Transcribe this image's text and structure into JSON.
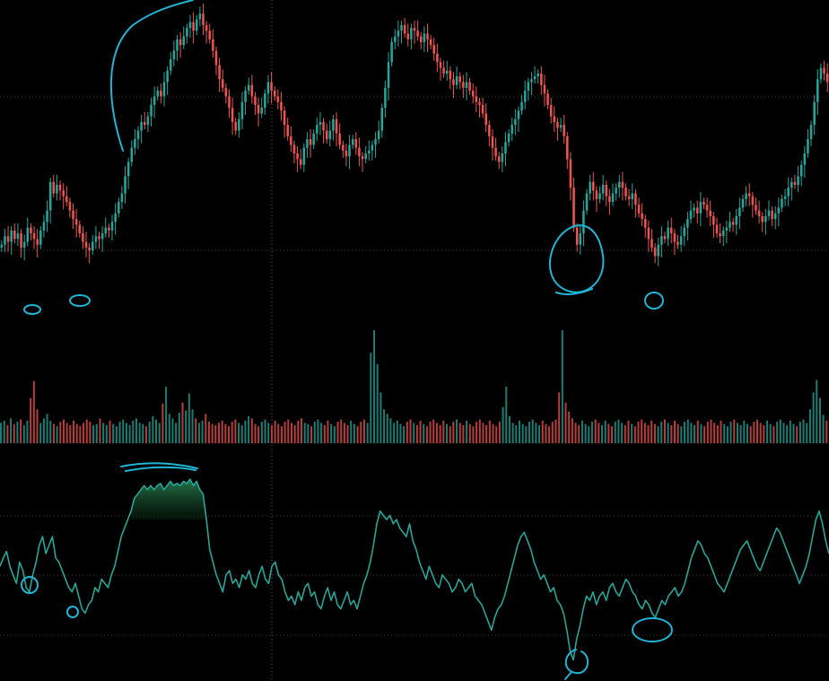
{
  "colors": {
    "background": "#000000",
    "up": "#26a69a",
    "down": "#ef5350",
    "rsi_line": "#26a69a",
    "annotation": "#1fb5d4",
    "grid": "#3a3a3a",
    "crosshair": "#5a5a5a"
  },
  "chart_data": [
    {
      "type": "candlestick",
      "panel": "price",
      "title": "",
      "xlabel": "",
      "ylabel": "",
      "grid": true,
      "ylim": [
        0,
        100
      ],
      "close": [
        18,
        21,
        19,
        23,
        20,
        22,
        17,
        19,
        24,
        22,
        20,
        18,
        23,
        26,
        30,
        40,
        36,
        39,
        37,
        35,
        33,
        30,
        27,
        25,
        22,
        19,
        17,
        16,
        19,
        21,
        20,
        22,
        24,
        23,
        26,
        29,
        33,
        36,
        42,
        47,
        52,
        55,
        58,
        61,
        60,
        63,
        67,
        70,
        72,
        70,
        75,
        79,
        83,
        86,
        90,
        88,
        91,
        94,
        96,
        93,
        97,
        99,
        95,
        93,
        90,
        86,
        81,
        76,
        73,
        70,
        66,
        61,
        58,
        62,
        68,
        72,
        74,
        70,
        67,
        64,
        66,
        71,
        75,
        72,
        70,
        68,
        65,
        60,
        56,
        53,
        50,
        48,
        46,
        52,
        55,
        53,
        57,
        60,
        61,
        58,
        55,
        58,
        62,
        57,
        53,
        51,
        49,
        53,
        55,
        52,
        49,
        48,
        50,
        51,
        53,
        55,
        58,
        66,
        73,
        82,
        89,
        91,
        93,
        95,
        92,
        90,
        94,
        93,
        91,
        89,
        92,
        90,
        88,
        85,
        82,
        80,
        78,
        79,
        76,
        74,
        77,
        75,
        73,
        75,
        72,
        70,
        68,
        67,
        64,
        60,
        56,
        52,
        49,
        47,
        50,
        54,
        57,
        60,
        62,
        65,
        68,
        72,
        75,
        76,
        77,
        78,
        74,
        71,
        67,
        63,
        61,
        59,
        60,
        56,
        48,
        38,
        24,
        18,
        22,
        30,
        36,
        40,
        37,
        34,
        36,
        39,
        35,
        33,
        36,
        38,
        40,
        38,
        35,
        34,
        36,
        32,
        29,
        27,
        24,
        20,
        17,
        14,
        18,
        21,
        20,
        24,
        22,
        19,
        18,
        21,
        24,
        27,
        30,
        31,
        29,
        33,
        32,
        30,
        28,
        25,
        22,
        21,
        23,
        24,
        26,
        25,
        28,
        31,
        34,
        36,
        35,
        32,
        30,
        28,
        26,
        28,
        30,
        27,
        29,
        31,
        34,
        35,
        38,
        40,
        39,
        42,
        46,
        50,
        55,
        60,
        68,
        76,
        80,
        78,
        75
      ]
    },
    {
      "type": "bar",
      "panel": "volume",
      "title": "",
      "values": [
        18,
        20,
        16,
        22,
        17,
        19,
        21,
        16,
        20,
        40,
        55,
        30,
        18,
        22,
        26,
        20,
        17,
        15,
        19,
        21,
        18,
        16,
        20,
        17,
        15,
        18,
        21,
        19,
        16,
        17,
        22,
        18,
        16,
        20,
        17,
        15,
        19,
        21,
        18,
        16,
        20,
        22,
        18,
        17,
        15,
        19,
        24,
        21,
        18,
        35,
        50,
        26,
        22,
        18,
        27,
        36,
        29,
        44,
        30,
        22,
        18,
        20,
        26,
        19,
        17,
        16,
        18,
        20,
        17,
        15,
        19,
        21,
        18,
        16,
        20,
        24,
        22,
        17,
        15,
        19,
        21,
        18,
        16,
        20,
        17,
        15,
        19,
        21,
        18,
        16,
        20,
        22,
        18,
        17,
        15,
        19,
        21,
        18,
        16,
        20,
        17,
        15,
        19,
        21,
        18,
        16,
        20,
        17,
        15,
        19,
        21,
        18,
        80,
        100,
        70,
        45,
        30,
        26,
        22,
        18,
        20,
        17,
        15,
        19,
        21,
        18,
        16,
        20,
        17,
        15,
        19,
        21,
        18,
        16,
        20,
        17,
        15,
        19,
        21,
        18,
        16,
        20,
        17,
        15,
        19,
        21,
        18,
        16,
        20,
        17,
        15,
        19,
        32,
        50,
        24,
        18,
        16,
        20,
        17,
        15,
        19,
        21,
        18,
        16,
        20,
        17,
        15,
        19,
        21,
        45,
        100,
        36,
        28,
        22,
        18,
        16,
        20,
        17,
        15,
        19,
        21,
        18,
        16,
        20,
        17,
        15,
        19,
        21,
        18,
        16,
        20,
        17,
        15,
        19,
        21,
        18,
        16,
        20,
        17,
        15,
        19,
        21,
        18,
        16,
        20,
        17,
        15,
        19,
        21,
        18,
        16,
        20,
        17,
        15,
        19,
        21,
        18,
        16,
        20,
        17,
        15,
        19,
        21,
        18,
        16,
        20,
        17,
        15,
        19,
        21,
        18,
        16,
        20,
        17,
        15,
        19,
        21,
        18,
        16,
        20,
        17,
        15,
        19,
        21,
        18,
        30,
        45,
        56,
        40,
        25,
        20
      ]
    },
    {
      "type": "line",
      "panel": "rsi",
      "title": "",
      "ylim": [
        0,
        100
      ],
      "reference_lines": [
        70,
        50,
        30
      ],
      "values": [
        48,
        52,
        55,
        48,
        44,
        40,
        50,
        46,
        38,
        36,
        44,
        50,
        58,
        62,
        54,
        58,
        62,
        52,
        50,
        46,
        42,
        38,
        36,
        40,
        34,
        28,
        26,
        30,
        32,
        38,
        36,
        42,
        40,
        38,
        44,
        48,
        55,
        62,
        66,
        70,
        74,
        80,
        82,
        84,
        86,
        84,
        86,
        84,
        86,
        87,
        84,
        86,
        88,
        86,
        87,
        86,
        88,
        87,
        89,
        86,
        88,
        84,
        82,
        70,
        56,
        50,
        44,
        40,
        36,
        44,
        46,
        40,
        42,
        38,
        44,
        42,
        46,
        40,
        38,
        44,
        48,
        42,
        40,
        48,
        50,
        44,
        42,
        36,
        32,
        34,
        30,
        36,
        32,
        38,
        40,
        34,
        36,
        30,
        28,
        34,
        38,
        32,
        36,
        30,
        28,
        32,
        36,
        30,
        32,
        28,
        34,
        40,
        44,
        50,
        58,
        68,
        74,
        72,
        70,
        72,
        68,
        70,
        66,
        64,
        62,
        68,
        60,
        56,
        50,
        46,
        42,
        48,
        44,
        40,
        38,
        44,
        42,
        40,
        36,
        38,
        42,
        40,
        36,
        38,
        40,
        34,
        32,
        30,
        26,
        22,
        18,
        24,
        28,
        30,
        34,
        40,
        46,
        52,
        58,
        62,
        64,
        60,
        56,
        50,
        46,
        42,
        44,
        40,
        36,
        38,
        32,
        30,
        26,
        18,
        8,
        4,
        14,
        20,
        28,
        34,
        32,
        36,
        30,
        34,
        36,
        32,
        38,
        40,
        36,
        34,
        38,
        42,
        40,
        36,
        34,
        30,
        28,
        32,
        30,
        26,
        24,
        28,
        32,
        30,
        34,
        36,
        38,
        34,
        36,
        40,
        46,
        52,
        56,
        60,
        58,
        54,
        52,
        48,
        44,
        40,
        38,
        36,
        40,
        44,
        48,
        52,
        56,
        58,
        60,
        56,
        52,
        48,
        46,
        50,
        54,
        58,
        62,
        66,
        64,
        60,
        56,
        52,
        48,
        44,
        40,
        44,
        48,
        54,
        62,
        70,
        74,
        68,
        60,
        54
      ]
    }
  ]
}
